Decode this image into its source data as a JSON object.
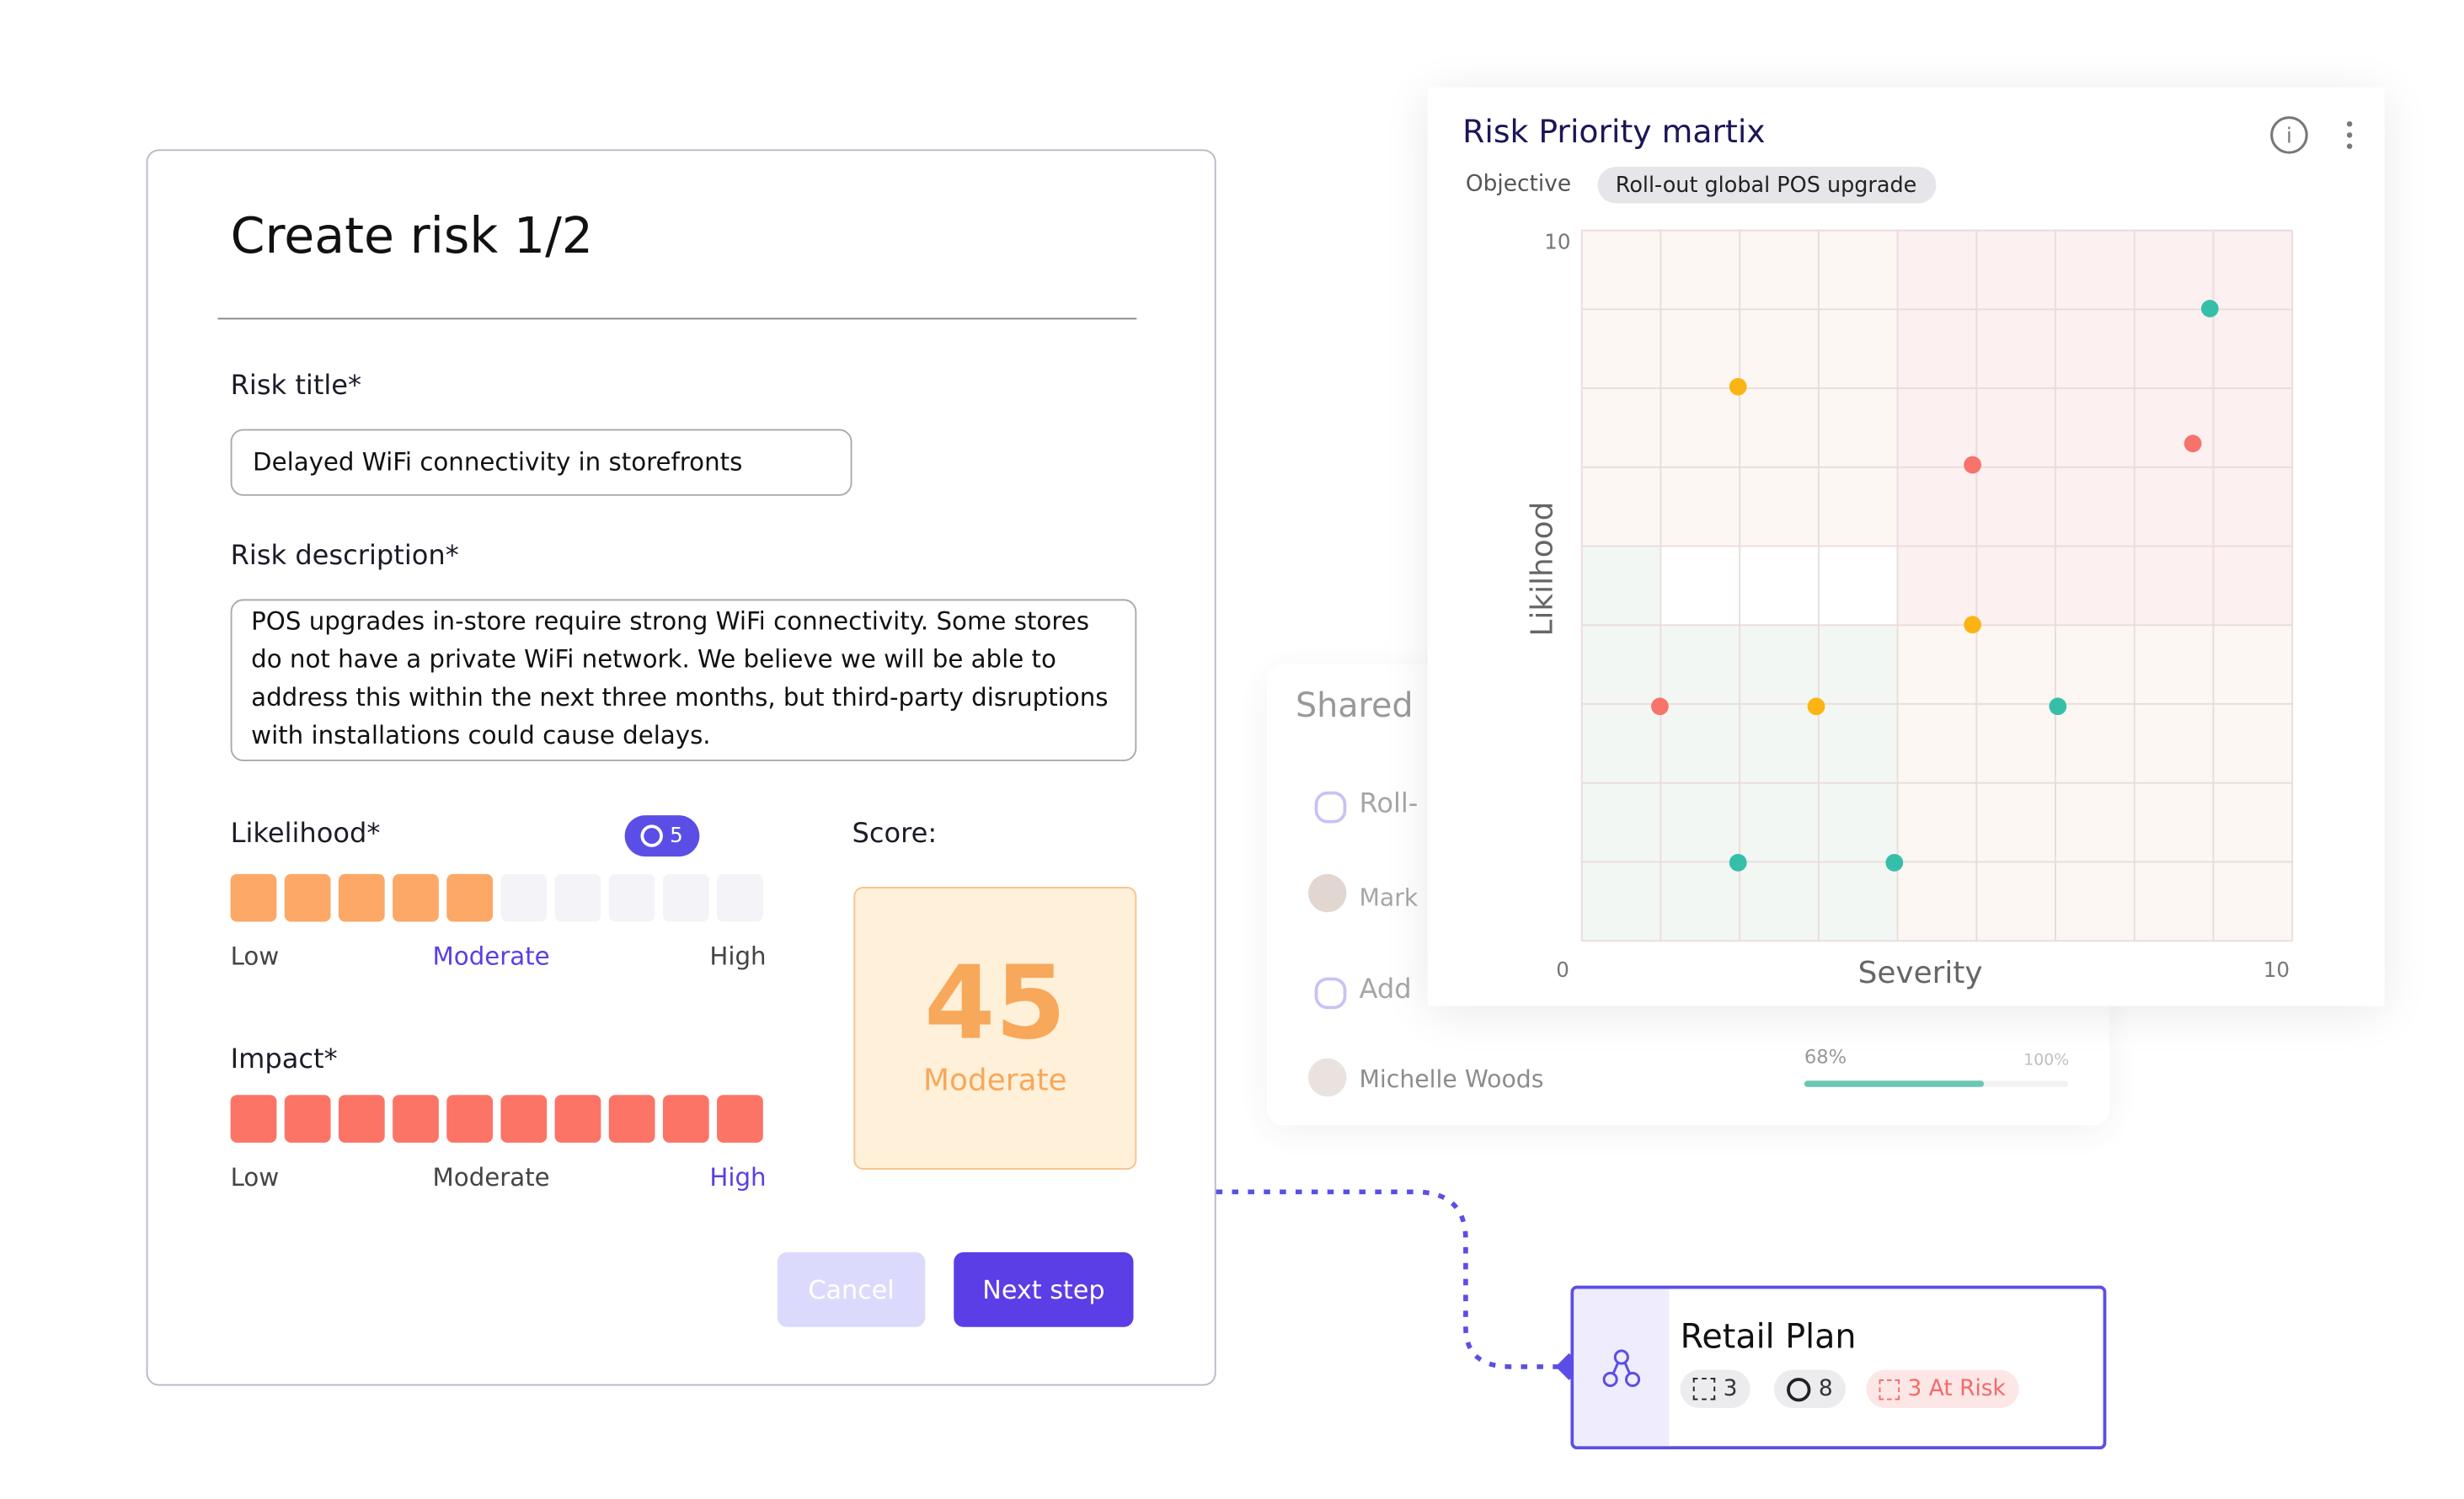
{
  "form": {
    "title": "Create risk 1/2",
    "risk_title_label": "Risk title*",
    "risk_title_value": "Delayed WiFi connectivity in storefronts",
    "description_label": "Risk description*",
    "description_value": "POS upgrades in-store require strong WiFi connectivity. Some stores do not have a private WiFi network. We believe we will be able to address this within the next three months, but third-party disruptions with installations could cause delays.",
    "likelihood": {
      "label": "Likelihood*",
      "badge": "5",
      "value": 5,
      "scale": [
        "Low",
        "Moderate",
        "High"
      ],
      "selected": 1,
      "color": "#fda866"
    },
    "impact": {
      "label": "Impact*",
      "value": 10,
      "scale": [
        "Low",
        "Moderate",
        "High"
      ],
      "selected": 2,
      "color": "#fb7466"
    },
    "score": {
      "label": "Score:",
      "value": "45",
      "level": "Moderate"
    },
    "cancel": "Cancel",
    "next": "Next step"
  },
  "background_panel": {
    "title": "Shared",
    "rows": [
      "Roll-",
      "Mark",
      "Add",
      "Michelle Woods"
    ],
    "progress": {
      "value": 68,
      "label": "68%",
      "max_label": "100%"
    }
  },
  "chart_data": {
    "type": "scatter",
    "title": "Risk Priority martix",
    "objective_label": "Objective",
    "objective": "Roll-out global POS upgrade",
    "x_label": "Severity",
    "y_label": "Likilhood",
    "xlim": [
      0,
      10
    ],
    "ylim": [
      0,
      10
    ],
    "xticks": [
      0,
      10
    ],
    "yticks": [
      10
    ],
    "series": [
      {
        "color": "#f7746a",
        "x": [
          5.5,
          8.6,
          1.1
        ],
        "values": [
          6.7,
          7.0,
          3.3
        ]
      },
      {
        "color": "#fbb414",
        "x": [
          2.2,
          5.5,
          3.3
        ],
        "values": [
          7.8,
          4.45,
          3.3
        ]
      },
      {
        "color": "#35bfa9",
        "x": [
          8.84,
          6.7,
          2.2,
          4.4
        ],
        "values": [
          8.9,
          3.3,
          1.1,
          1.1
        ]
      }
    ]
  },
  "retail_card": {
    "title": "Retail Plan",
    "objectives": "3",
    "targets": "8",
    "at_risk": "3 At Risk"
  }
}
